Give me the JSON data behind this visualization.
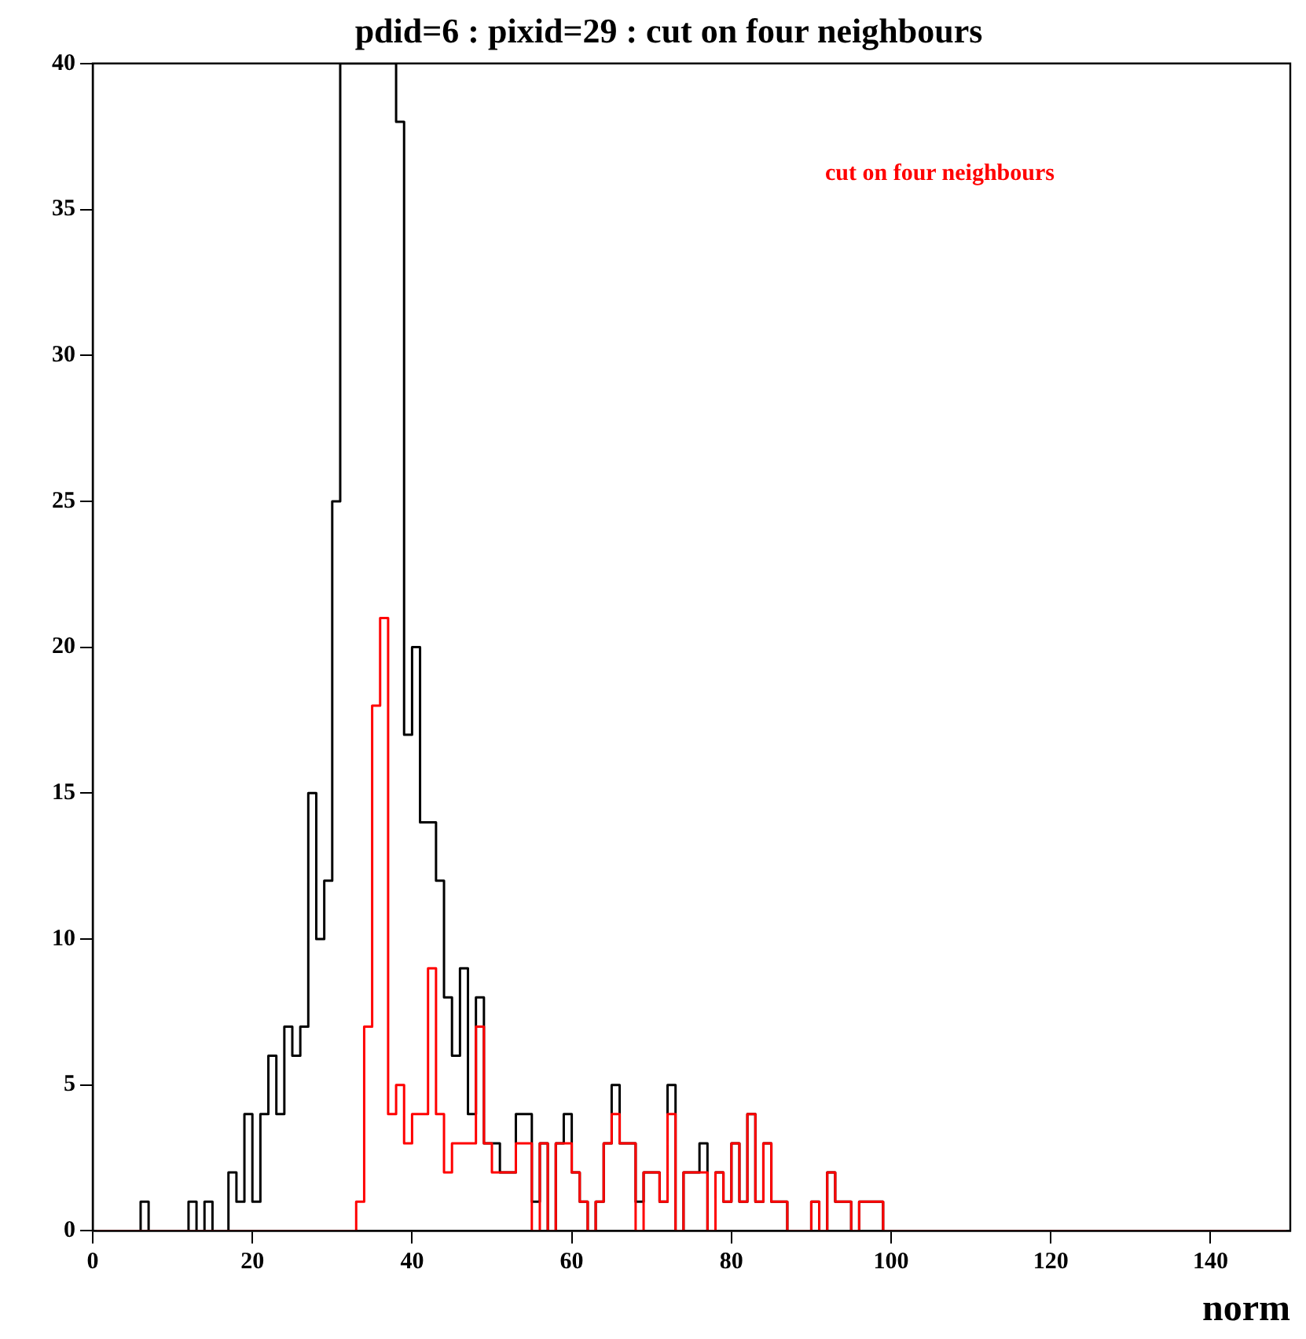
{
  "chart_data": {
    "type": "histogram",
    "title": "pdid=6 : pixid=29 : cut on four neighbours",
    "xlabel": "norm",
    "bins": [
      0,
      1,
      2,
      3,
      4,
      5,
      6,
      7,
      8,
      9,
      10,
      11,
      12,
      13,
      14,
      15,
      16,
      17,
      18,
      19,
      20,
      21,
      22,
      23,
      24,
      25,
      26,
      27,
      28,
      29,
      30,
      31,
      32,
      33,
      34,
      35,
      36,
      37,
      38,
      39,
      40,
      41,
      42,
      43,
      44,
      45,
      46,
      47,
      48,
      49,
      50,
      51,
      52,
      53,
      54,
      55,
      56,
      57,
      58,
      59,
      60,
      61,
      62,
      63,
      64,
      65,
      66,
      67,
      68,
      69,
      70,
      71,
      72,
      73,
      74,
      75,
      76,
      77,
      78,
      79,
      80,
      81,
      82,
      83,
      84,
      85,
      86,
      87,
      88,
      89,
      90,
      91,
      92,
      93,
      94,
      95,
      96,
      97,
      98,
      99,
      100,
      101,
      102,
      103,
      104,
      105,
      106,
      107,
      108,
      109,
      110,
      111,
      112,
      113,
      114,
      115,
      116,
      117,
      118,
      119,
      120,
      121,
      122,
      123,
      124,
      125,
      126,
      127,
      128,
      129,
      130,
      131,
      132,
      133,
      134,
      135,
      136,
      137,
      138,
      139,
      140,
      141,
      142,
      143,
      144,
      145,
      146,
      147,
      148,
      149,
      150
    ],
    "series": [
      {
        "color": "#000000",
        "values": [
          0,
          0,
          0,
          0,
          0,
          0,
          1,
          0,
          0,
          0,
          0,
          0,
          1,
          0,
          1,
          0,
          0,
          2,
          1,
          4,
          1,
          4,
          6,
          4,
          7,
          6,
          7,
          15,
          10,
          12,
          25,
          40,
          40,
          40,
          40,
          40,
          40,
          40,
          38,
          17,
          20,
          14,
          14,
          12,
          8,
          6,
          9,
          4,
          8,
          3,
          3,
          2,
          2,
          4,
          4,
          1,
          3,
          0,
          3,
          4,
          2,
          1,
          0,
          1,
          3,
          5,
          3,
          3,
          1,
          2,
          2,
          1,
          5,
          0,
          2,
          2,
          3,
          0,
          2,
          1,
          3,
          1,
          4,
          1,
          3,
          1,
          1,
          0,
          0,
          0,
          1,
          0,
          2,
          1,
          1,
          0,
          1,
          1,
          1,
          0,
          0,
          0,
          0,
          0,
          0,
          0,
          0,
          0,
          0,
          0,
          0,
          0,
          0,
          0,
          0,
          0,
          0,
          0,
          0,
          0,
          0,
          0,
          0,
          0,
          0,
          0,
          0,
          0,
          0,
          0,
          0,
          0,
          0,
          0,
          0,
          0,
          0,
          0,
          0,
          0,
          0,
          0,
          0,
          0,
          0,
          0,
          0,
          0,
          0,
          0
        ]
      },
      {
        "name": "cut on four neighbours",
        "color": "#ff0000",
        "values": [
          0,
          0,
          0,
          0,
          0,
          0,
          0,
          0,
          0,
          0,
          0,
          0,
          0,
          0,
          0,
          0,
          0,
          0,
          0,
          0,
          0,
          0,
          0,
          0,
          0,
          0,
          0,
          0,
          0,
          0,
          0,
          0,
          0,
          1,
          7,
          18,
          21,
          4,
          5,
          3,
          4,
          4,
          9,
          4,
          2,
          3,
          3,
          3,
          7,
          3,
          2,
          2,
          2,
          3,
          3,
          0,
          3,
          0,
          3,
          3,
          2,
          1,
          0,
          1,
          3,
          4,
          3,
          3,
          0,
          2,
          2,
          1,
          4,
          0,
          2,
          2,
          2,
          0,
          2,
          1,
          3,
          1,
          4,
          1,
          3,
          1,
          1,
          0,
          0,
          0,
          1,
          0,
          2,
          1,
          1,
          0,
          1,
          1,
          1,
          0,
          0,
          0,
          0,
          0,
          0,
          0,
          0,
          0,
          0,
          0,
          0,
          0,
          0,
          0,
          0,
          0,
          0,
          0,
          0,
          0,
          0,
          0,
          0,
          0,
          0,
          0,
          0,
          0,
          0,
          0,
          0,
          0,
          0,
          0,
          0,
          0,
          0,
          0,
          0,
          0,
          0,
          0,
          0,
          0,
          0,
          0,
          0,
          0,
          0,
          0
        ]
      }
    ],
    "xlim": [
      0,
      150
    ],
    "xticks": [
      0,
      20,
      40,
      60,
      80,
      100,
      120,
      140
    ],
    "ylim": [
      0,
      40
    ],
    "yticks": [
      0,
      5,
      10,
      15,
      20,
      25,
      30,
      35,
      40
    ],
    "grid": false,
    "legend": "top right"
  }
}
